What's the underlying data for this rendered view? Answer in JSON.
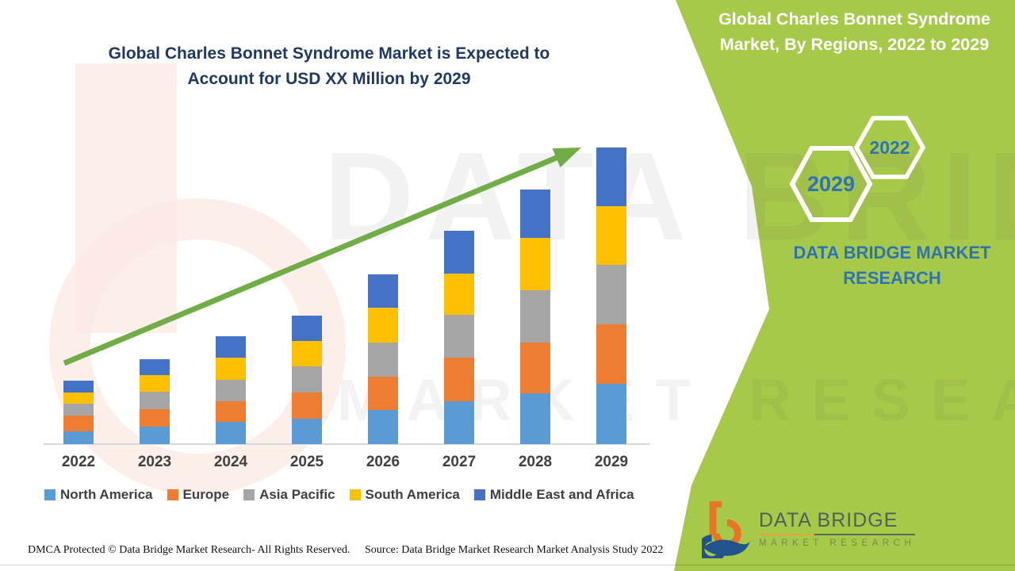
{
  "title": {
    "text": "Global Charles Bonnet Syndrome Market is Expected to Account for USD XX Million by 2029",
    "color": "#1F3864"
  },
  "side_panel": {
    "background_color": "#A6C94A",
    "heading": "Global Charles Bonnet Syndrome Market, By Regions, 2022 to 2029",
    "hexagons": [
      {
        "label": "2029"
      },
      {
        "label": "2022"
      }
    ],
    "hexagon_label_color": "#2E74B5",
    "brand_text": "DATA BRIDGE MARKET RESEARCH"
  },
  "chart_data": {
    "type": "bar",
    "stacked": true,
    "title": "Global Charles Bonnet Syndrome Market is Expected to Account for USD XX Million by 2029",
    "categories": [
      "2022",
      "2023",
      "2024",
      "2025",
      "2026",
      "2027",
      "2028",
      "2029"
    ],
    "series": [
      {
        "name": "North America",
        "color": "#5B9BD5",
        "values": [
          16,
          22,
          28,
          32,
          43,
          54,
          64,
          76
        ]
      },
      {
        "name": "Europe",
        "color": "#ED7D31",
        "values": [
          20,
          22,
          26,
          33,
          42,
          55,
          64,
          75
        ]
      },
      {
        "name": "Asia Pacific",
        "color": "#A5A5A5",
        "values": [
          15,
          22,
          27,
          33,
          43,
          54,
          66,
          75
        ]
      },
      {
        "name": "South America",
        "color": "#FFC000",
        "values": [
          14,
          21,
          28,
          32,
          44,
          52,
          66,
          74
        ]
      },
      {
        "name": "Middle East and Africa",
        "color": "#4472C4",
        "values": [
          15,
          20,
          27,
          32,
          42,
          54,
          61,
          74
        ]
      }
    ],
    "value_axis": "not labeled (values undisclosed, \"USD XX Million\"); segment values are relative index units estimated from bar heights",
    "legend_position": "bottom",
    "grid": false,
    "trend_arrow": {
      "present": true,
      "color": "#70AD47",
      "direction": "up-right"
    }
  },
  "footer": {
    "dmca": "DMCA Protected © Data Bridge Market Research- All Rights Reserved.",
    "source": "Source: Data Bridge Market Research Market Analysis Study 2022"
  },
  "logo": {
    "line1": "DATA BRIDGE",
    "line2": "MARKET RESEARCH"
  },
  "watermark": {
    "line1": "DATA BRIDGE",
    "line2": "MARKET RESEARCH"
  }
}
